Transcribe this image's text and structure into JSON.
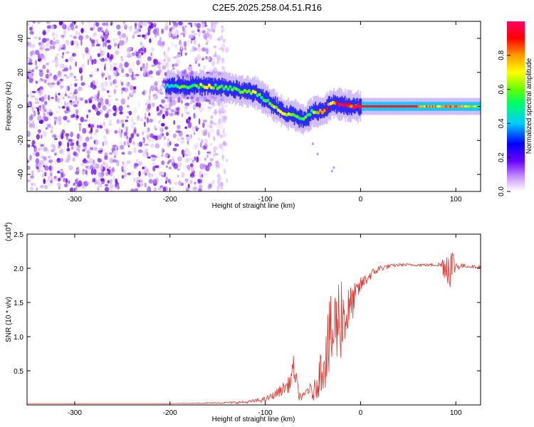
{
  "title": "C2E5.2025.258.04.51.R16",
  "chart_data": [
    {
      "type": "heatmap",
      "xlabel": "Height of straight line (km)",
      "ylabel": "Frequency (Hz)",
      "xlim": [
        -350,
        126
      ],
      "ylim": [
        -50,
        50
      ],
      "xticks": [
        -300,
        -200,
        -100,
        0,
        100
      ],
      "yticks": [
        -40,
        -20,
        0,
        20,
        40
      ],
      "xtick_labels": [
        "-300",
        "-200",
        "-100",
        "0",
        "100"
      ],
      "ytick_labels": [
        "-40",
        "-20",
        "0",
        "20",
        "40"
      ],
      "noise_region_x": [
        -350,
        -140
      ],
      "ridge": {
        "x": [
          -205,
          -180,
          -160,
          -140,
          -125,
          -110,
          -100,
          -90,
          -80,
          -70,
          -60,
          -50,
          -40,
          -30,
          -20,
          -10,
          0,
          40,
          80,
          100,
          126
        ],
        "freq": [
          12,
          12,
          12,
          11,
          9,
          8,
          4,
          0,
          -4,
          -5,
          -8,
          -3,
          -3,
          2,
          1,
          0,
          0,
          0,
          0,
          0,
          0
        ],
        "peak_amplitude": [
          0.45,
          0.55,
          0.6,
          0.55,
          0.55,
          0.6,
          0.5,
          0.6,
          0.65,
          0.55,
          0.5,
          0.6,
          0.9,
          0.7,
          0.9,
          0.9,
          1.0,
          0.85,
          0.75,
          0.8,
          0.6
        ]
      },
      "colorbar": {
        "label": "Normalized spectral amplitude",
        "range": [
          0,
          1
        ],
        "ticks": [
          0.0,
          0.2,
          0.4,
          0.6,
          0.8
        ],
        "tick_labels": [
          "0.0",
          "0.2",
          "0.4",
          "0.6",
          "0.8"
        ],
        "colors": [
          "#ffffff",
          "#cc99ff",
          "#6600ff",
          "#0000ff",
          "#00ccff",
          "#00ff66",
          "#66ff00",
          "#ffff00",
          "#ff9900",
          "#ff0000",
          "#ff0066"
        ]
      }
    },
    {
      "type": "line",
      "xlabel": "Height of straight line (km)",
      "ylabel": "SNR (10 * v/v)",
      "scale_label": "(x10",
      "scale_exp": "4",
      "scale_close": ")",
      "xlim": [
        -350,
        126
      ],
      "ylim": [
        0,
        2.5
      ],
      "xticks": [
        -300,
        -200,
        -100,
        0,
        100
      ],
      "yticks": [
        0.5,
        1.0,
        1.5,
        2.0,
        2.5
      ],
      "xtick_labels": [
        "-300",
        "-200",
        "-100",
        "0",
        "100"
      ],
      "ytick_labels": [
        "0.5",
        "1.0",
        "1.5",
        "2.0",
        "2.5"
      ],
      "line_color": "#e8302a",
      "series": {
        "name": "SNR",
        "x": [
          -350,
          -300,
          -250,
          -200,
          -150,
          -120,
          -100,
          -90,
          -80,
          -75,
          -70,
          -65,
          -60,
          -55,
          -50,
          -45,
          -40,
          -35,
          -30,
          -25,
          -20,
          -15,
          -10,
          -5,
          0,
          10,
          20,
          30,
          40,
          50,
          60,
          70,
          80,
          85,
          90,
          95,
          100,
          110,
          126
        ],
        "y": [
          0.02,
          0.02,
          0.02,
          0.02,
          0.03,
          0.04,
          0.08,
          0.15,
          0.25,
          0.3,
          0.55,
          0.15,
          0.1,
          0.25,
          0.15,
          0.35,
          0.6,
          0.8,
          1.0,
          1.2,
          1.35,
          1.3,
          1.45,
          1.6,
          1.75,
          1.9,
          2.0,
          2.03,
          2.05,
          2.05,
          2.05,
          2.05,
          2.05,
          2.05,
          2.05,
          2.05,
          2.04,
          2.03,
          2.02
        ],
        "noise_amplitude": [
          0.0,
          0.0,
          0.0,
          0.0,
          0.01,
          0.02,
          0.04,
          0.06,
          0.1,
          0.12,
          0.2,
          0.08,
          0.06,
          0.12,
          0.1,
          0.25,
          0.4,
          0.55,
          0.7,
          0.65,
          0.7,
          0.45,
          0.3,
          0.2,
          0.12,
          0.08,
          0.05,
          0.03,
          0.02,
          0.02,
          0.02,
          0.02,
          0.02,
          0.08,
          0.3,
          0.35,
          0.08,
          0.02,
          0.02
        ]
      }
    }
  ]
}
